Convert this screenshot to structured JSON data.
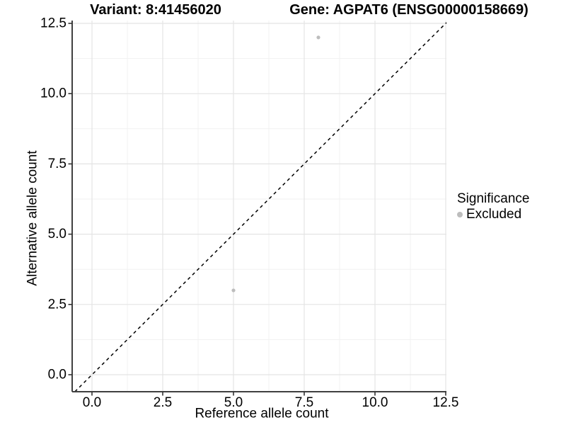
{
  "chart_data": {
    "type": "scatter",
    "title_left": "Variant: 8:41456020",
    "title_right": "Gene: AGPAT6 (ENSG00000158669)",
    "xlabel": "Reference allele count",
    "ylabel": "Alternative allele count",
    "xlim": [
      0,
      12.5
    ],
    "ylim": [
      0,
      12.5
    ],
    "x_ticks": [
      0,
      2.5,
      5,
      7.5,
      10,
      12.5
    ],
    "x_tick_labels": [
      "0.0",
      "2.5",
      "5.0",
      "7.5",
      "10.0",
      "12.5"
    ],
    "y_ticks": [
      0,
      2.5,
      5,
      7.5,
      10,
      12.5
    ],
    "y_tick_labels": [
      "0.0",
      "2.5",
      "5.0",
      "7.5",
      "10.0",
      "12.5"
    ],
    "grid": true,
    "series": [
      {
        "name": "Excluded",
        "color": "#bdbdbd",
        "points": [
          {
            "x": 5,
            "y": 3
          },
          {
            "x": 8,
            "y": 12
          }
        ]
      }
    ],
    "reference_line": {
      "slope": 1,
      "intercept": 0,
      "style": "dashed",
      "color": "#000000"
    },
    "legend": {
      "position": "right",
      "title": "Significance",
      "entries": [
        {
          "label": "Excluded",
          "color": "#bdbdbd"
        }
      ]
    },
    "colors": {
      "background": "#ffffff",
      "grid_major": "#e4e4e4",
      "grid_minor": "#f1f1f1",
      "axis_line": "#404040",
      "tick": "#333333",
      "point": "#bdbdbd",
      "text": "#000000"
    }
  }
}
